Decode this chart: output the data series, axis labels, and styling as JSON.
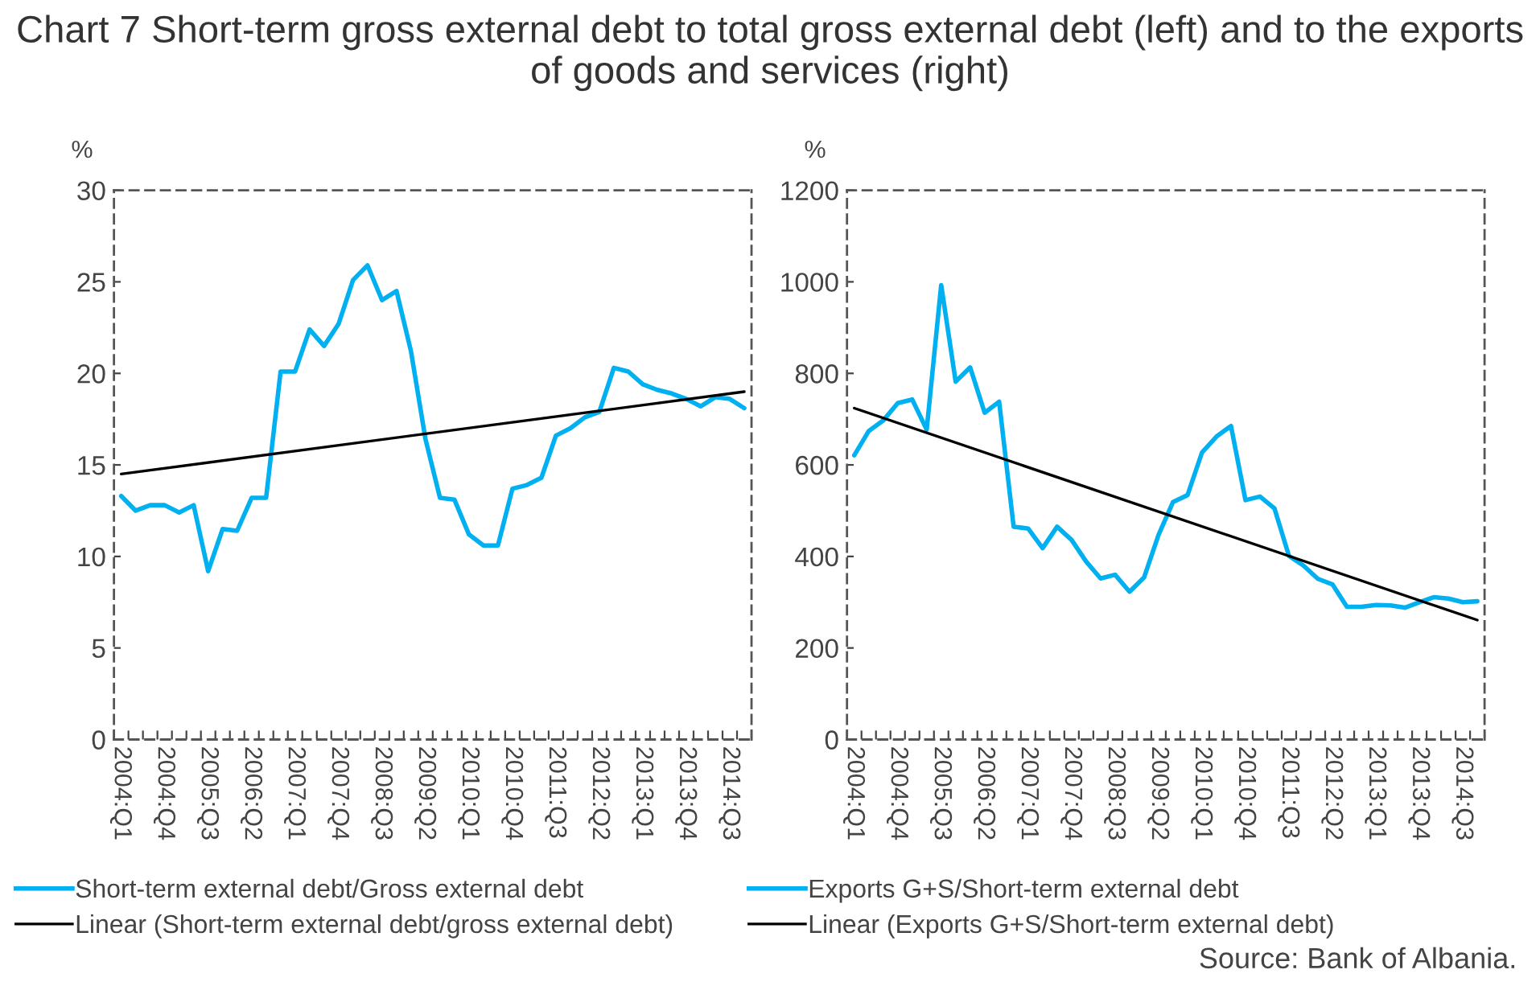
{
  "chart_data": [
    {
      "type": "line",
      "title": "Chart 7 Short-term gross external debt to total gross external debt (left) and to the exports of goods and services (right)",
      "ylabel": "%",
      "categories": [
        "2004:Q1",
        null,
        null,
        "2004:Q4",
        null,
        null,
        "2005:Q3",
        null,
        null,
        "2006:Q2",
        null,
        null,
        "2007:Q1",
        null,
        null,
        "2007:Q4",
        null,
        null,
        "2008:Q3",
        null,
        null,
        "2009:Q2",
        null,
        null,
        "2010:Q1",
        null,
        null,
        "2010:Q4",
        null,
        null,
        "2011:Q3",
        null,
        null,
        "2012:Q2",
        null,
        null,
        "2013:Q1",
        null,
        null,
        "2013:Q4",
        null,
        null,
        "2014:Q3",
        null
      ],
      "series": [
        {
          "name": "Short-term external debt/Gross external debt",
          "color": "#00b0f0",
          "values": [
            13.3,
            12.5,
            12.8,
            12.8,
            12.4,
            12.8,
            9.2,
            11.5,
            11.4,
            13.2,
            13.2,
            20.1,
            20.1,
            22.4,
            21.5,
            22.7,
            25.1,
            25.9,
            24.0,
            24.5,
            21.2,
            16.4,
            13.2,
            13.1,
            11.2,
            10.6,
            10.6,
            13.7,
            13.9,
            14.3,
            16.6,
            17.0,
            17.6,
            17.9,
            20.3,
            20.1,
            19.4,
            19.1,
            18.9,
            18.6,
            18.2,
            18.7,
            18.6,
            18.1
          ]
        },
        {
          "name": "Linear (Short-term external debt/gross external debt)",
          "color": "#000000",
          "values": [
            14.5,
            null,
            null,
            null,
            null,
            null,
            null,
            null,
            null,
            null,
            null,
            null,
            null,
            null,
            null,
            null,
            null,
            null,
            null,
            null,
            null,
            null,
            null,
            null,
            null,
            null,
            null,
            null,
            null,
            null,
            null,
            null,
            null,
            null,
            null,
            null,
            null,
            null,
            null,
            null,
            null,
            null,
            null,
            19.0
          ]
        }
      ],
      "ylim": [
        0,
        30
      ],
      "yticks": [
        0,
        5,
        10,
        15,
        20,
        25,
        30
      ],
      "legend": "bottom",
      "marker": "none",
      "line_style": "solid"
    },
    {
      "type": "line",
      "ylabel": "%",
      "annotations": [
        "Source: Bank of Albania."
      ],
      "categories": [
        "2004:Q1",
        null,
        null,
        "2004:Q4",
        null,
        null,
        "2005:Q3",
        null,
        null,
        "2006:Q2",
        null,
        null,
        "2007:Q1",
        null,
        null,
        "2007:Q4",
        null,
        null,
        "2008:Q3",
        null,
        null,
        "2009:Q2",
        null,
        null,
        "2010:Q1",
        null,
        null,
        "2010:Q4",
        null,
        null,
        "2011:Q3",
        null,
        null,
        "2012:Q2",
        null,
        null,
        "2013:Q1",
        null,
        null,
        "2013:Q4",
        null,
        null,
        "2014:Q3",
        null
      ],
      "series": [
        {
          "name": "Exports G+S/Short-term external debt",
          "color": "#00b0f0",
          "values": [
            621,
            674,
            697,
            735,
            743,
            677,
            993,
            782,
            813,
            714,
            738,
            465,
            461,
            418,
            465,
            436,
            389,
            352,
            360,
            323,
            354,
            447,
            519,
            534,
            627,
            662,
            685,
            523,
            531,
            505,
            401,
            380,
            351,
            339,
            290,
            290,
            294,
            293,
            288,
            300,
            311,
            308,
            300,
            302
          ]
        },
        {
          "name": "Linear (Exports G+S/Short-term external debt)",
          "color": "#000000",
          "values": [
            724,
            null,
            null,
            null,
            null,
            null,
            null,
            null,
            null,
            null,
            null,
            null,
            null,
            null,
            null,
            null,
            null,
            null,
            null,
            null,
            null,
            null,
            null,
            null,
            null,
            null,
            null,
            null,
            null,
            null,
            null,
            null,
            null,
            null,
            null,
            null,
            null,
            null,
            null,
            null,
            null,
            null,
            null,
            261
          ]
        }
      ],
      "ylim": [
        0,
        1200
      ],
      "yticks": [
        0,
        200,
        400,
        600,
        800,
        1000,
        1200
      ],
      "legend": "bottom",
      "marker": "none",
      "line_style": "solid"
    }
  ]
}
